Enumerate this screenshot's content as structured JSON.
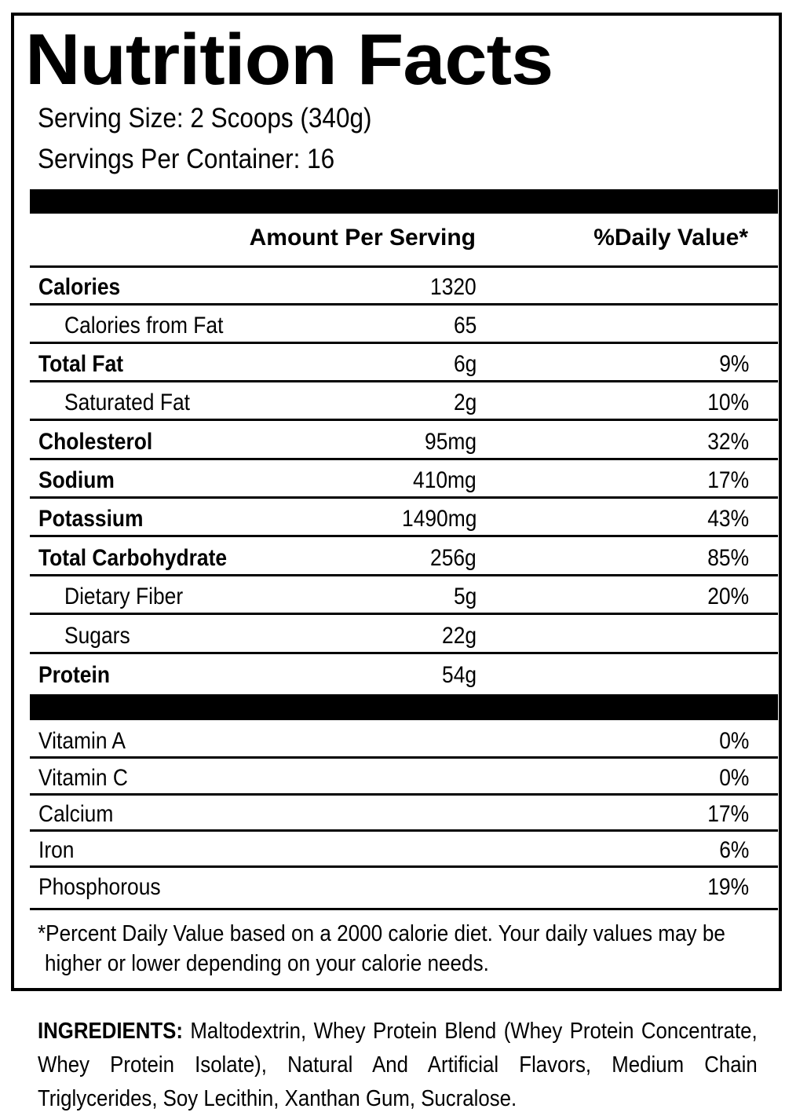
{
  "title": "Nutrition Facts",
  "serving_size": "Serving Size: 2 Scoops (340g)",
  "servings_per_container": "Servings Per Container: 16",
  "headers": {
    "amount": "Amount Per Serving",
    "daily_value": "%Daily Value*"
  },
  "nutrients": [
    {
      "name": "Calories",
      "amount": "1320",
      "dv": ""
    },
    {
      "name": "Calories from Fat",
      "amount": "65",
      "dv": ""
    },
    {
      "name": "Total Fat",
      "amount": "6g",
      "dv": "9%"
    },
    {
      "name": "Saturated Fat",
      "amount": "2g",
      "dv": "10%"
    },
    {
      "name": "Cholesterol",
      "amount": "95mg",
      "dv": "32%"
    },
    {
      "name": "Sodium",
      "amount": "410mg",
      "dv": "17%"
    },
    {
      "name": "Potassium",
      "amount": "1490mg",
      "dv": "43%"
    },
    {
      "name": "Total Carbohydrate",
      "amount": "256g",
      "dv": "85%"
    },
    {
      "name": "Dietary Fiber",
      "amount": "5g",
      "dv": "20%"
    },
    {
      "name": "Sugars",
      "amount": "22g",
      "dv": ""
    },
    {
      "name": "Protein",
      "amount": "54g",
      "dv": ""
    }
  ],
  "vitamins": [
    {
      "name": "Vitamin A",
      "dv": "0%"
    },
    {
      "name": "Vitamin C",
      "dv": "0%"
    },
    {
      "name": "Calcium",
      "dv": "17%"
    },
    {
      "name": "Iron",
      "dv": "6%"
    },
    {
      "name": "Phosphorous",
      "dv": "19%"
    }
  ],
  "footnote": {
    "line1": "*Percent Daily Value based on a 2000 calorie diet. Your daily values may be",
    "line2": "higher or lower depending on your calorie needs."
  },
  "ingredients": {
    "label": "INGREDIENTS:",
    "text": "Maltodextrin, Whey Protein Blend (Whey Protein Concentrate, Whey Protein Isolate), Natural And Artificial Flavors, Medium Chain Triglycerides, Soy Lecithin, Xanthan Gum, Sucralose."
  }
}
